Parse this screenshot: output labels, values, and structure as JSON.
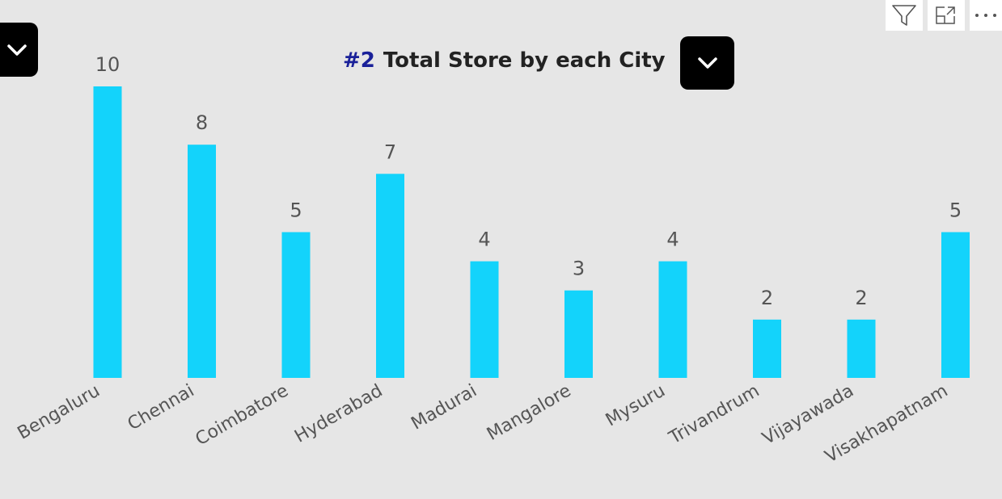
{
  "title": {
    "number": "#2",
    "text": "Total Store by each City"
  },
  "toolbar": {
    "icons": [
      "filter-icon",
      "expand-icon",
      "more-options-icon"
    ]
  },
  "colors": {
    "bar": "#13d3fb",
    "title_number": "#1a2199",
    "title_text": "#222222",
    "label": "#555555",
    "background": "#e6e6e6"
  },
  "chart_data": {
    "type": "bar",
    "title": "Total Store by each City",
    "categories": [
      "Bengaluru",
      "Chennai",
      "Coimbatore",
      "Hyderabad",
      "Madurai",
      "Mangalore",
      "Mysuru",
      "Trivandrum",
      "Vijayawada",
      "Visakhapatnam"
    ],
    "values": [
      10,
      8,
      5,
      7,
      4,
      3,
      4,
      2,
      2,
      5
    ],
    "xlabel": "",
    "ylabel": "",
    "ylim": [
      0,
      10
    ],
    "grid": false,
    "data_labels": true
  }
}
